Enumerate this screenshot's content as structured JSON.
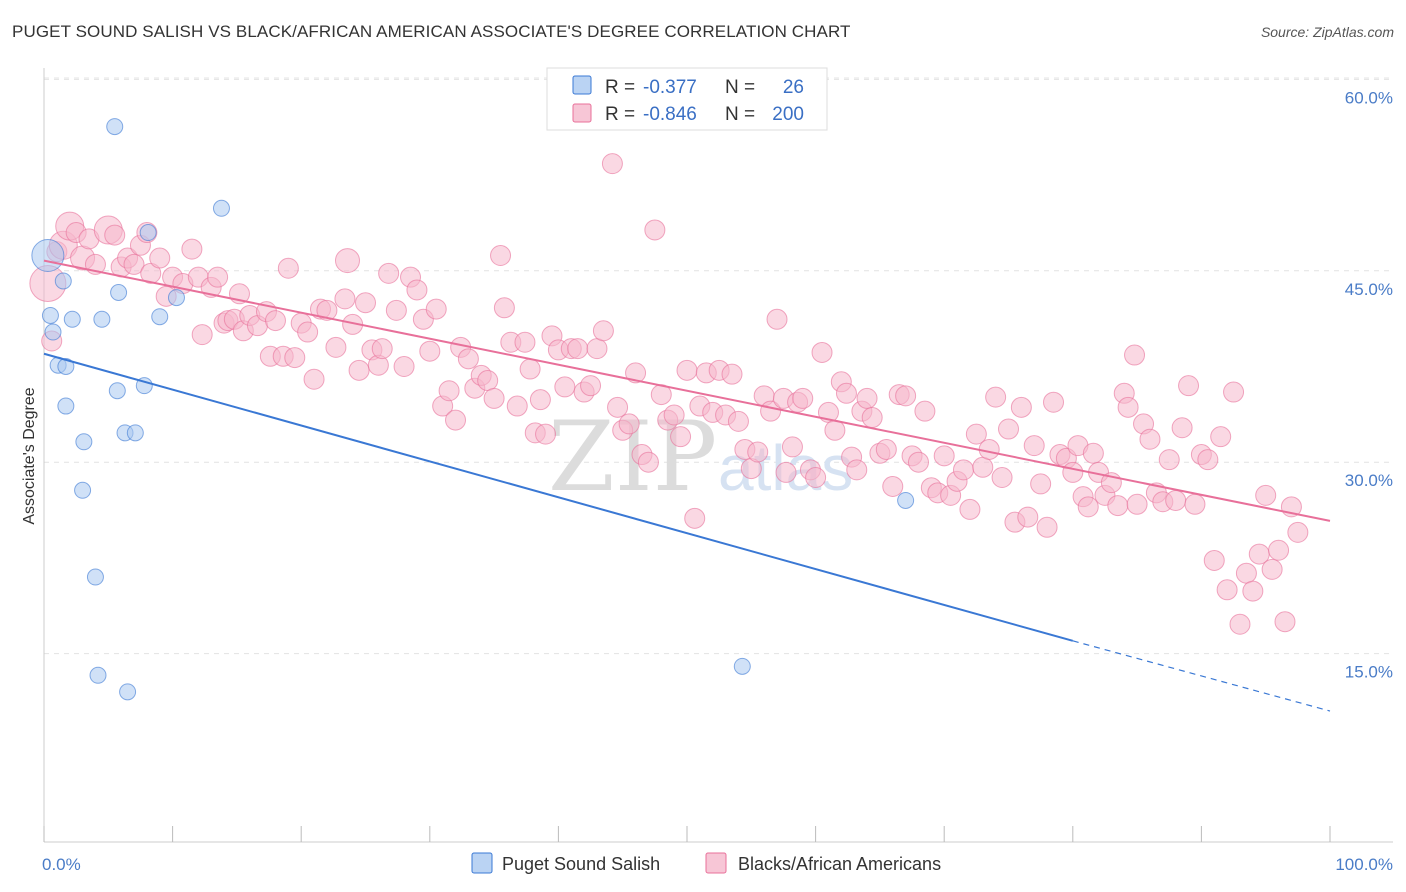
{
  "title": "PUGET SOUND SALISH VS BLACK/AFRICAN AMERICAN ASSOCIATE'S DEGREE CORRELATION CHART",
  "source": "Source: ZipAtlas.com",
  "watermark": {
    "zip": "ZIP",
    "atlas": "atlas"
  },
  "colors": {
    "blue": "#3a78d4",
    "blue_fill": "#a9c8f0",
    "pink": "#e8709a",
    "pink_fill": "#f5b8cc",
    "tick": "#4a7cc7"
  },
  "legend": {
    "rows": [
      {
        "r_label": "R = ",
        "r_value": "-0.377",
        "n_label": "N = ",
        "n_value": "26"
      },
      {
        "r_label": "R = ",
        "r_value": "-0.846",
        "n_label": "N = ",
        "n_value": "200"
      }
    ]
  },
  "chart_data": {
    "type": "scatter",
    "xlabel": "",
    "ylabel": "Associate's Degree",
    "xlim": [
      0,
      100
    ],
    "ylim": [
      0,
      65
    ],
    "x_tick_labels": [
      "0.0%",
      "100.0%"
    ],
    "y_ticks": [
      15,
      30,
      45,
      60
    ],
    "y_tick_labels": [
      "15.0%",
      "30.0%",
      "45.0%",
      "60.0%"
    ],
    "grid": "horizontal dashed",
    "legend_position": "top-center",
    "series": [
      {
        "name": "Puget Sound Salish",
        "color": "blue",
        "trend": {
          "x0": 0,
          "y0": 38.5,
          "x1": 80,
          "y1": 16.0,
          "dashed_to_x": 100,
          "dashed_y": 10.5
        },
        "points": [
          [
            0.3,
            46.2,
            16
          ],
          [
            0.5,
            41.5,
            8
          ],
          [
            0.7,
            40.2,
            8
          ],
          [
            1.1,
            37.6,
            8
          ],
          [
            1.5,
            44.2,
            8
          ],
          [
            1.7,
            37.5,
            8
          ],
          [
            1.7,
            34.4,
            8
          ],
          [
            2.2,
            41.2,
            8
          ],
          [
            3.0,
            27.8,
            8
          ],
          [
            3.1,
            31.6,
            8
          ],
          [
            4.0,
            21.0,
            8
          ],
          [
            4.2,
            13.3,
            8
          ],
          [
            4.5,
            41.2,
            8
          ],
          [
            5.5,
            56.3,
            8
          ],
          [
            5.7,
            35.6,
            8
          ],
          [
            5.8,
            43.3,
            8
          ],
          [
            6.3,
            32.3,
            8
          ],
          [
            6.5,
            12.0,
            8
          ],
          [
            7.1,
            32.3,
            8
          ],
          [
            7.8,
            36.0,
            8
          ],
          [
            8.1,
            48.0,
            8
          ],
          [
            9.0,
            41.4,
            8
          ],
          [
            10.3,
            42.9,
            8
          ],
          [
            13.8,
            49.9,
            8
          ],
          [
            54.3,
            14.0,
            8
          ],
          [
            67.0,
            27.0,
            8
          ]
        ]
      },
      {
        "name": "Blacks/African Americans",
        "color": "pink",
        "trend": {
          "x0": 0,
          "y0": 45.8,
          "x1": 100,
          "y1": 25.4
        },
        "points": [
          [
            0.3,
            44.0,
            18
          ],
          [
            0.6,
            39.5,
            10
          ],
          [
            1.0,
            46.5,
            10
          ],
          [
            1.5,
            47.0,
            14
          ],
          [
            2.0,
            48.5,
            14
          ],
          [
            2.5,
            48.0,
            10
          ],
          [
            3.0,
            46.0,
            12
          ],
          [
            3.5,
            47.5,
            10
          ],
          [
            4.0,
            45.5,
            10
          ],
          [
            5.0,
            48.2,
            14
          ],
          [
            5.5,
            47.8,
            10
          ],
          [
            6.0,
            45.3,
            10
          ],
          [
            6.5,
            46.0,
            10
          ],
          [
            7.0,
            45.5,
            10
          ],
          [
            7.5,
            47.0,
            10
          ],
          [
            8.0,
            48.0,
            10
          ],
          [
            8.3,
            44.8,
            10
          ],
          [
            9.0,
            46.0,
            10
          ],
          [
            9.5,
            43.0,
            10
          ],
          [
            10.0,
            44.5,
            10
          ],
          [
            10.8,
            44.0,
            10
          ],
          [
            11.5,
            46.7,
            10
          ],
          [
            12.0,
            44.5,
            10
          ],
          [
            12.3,
            40.0,
            10
          ],
          [
            13.0,
            43.7,
            10
          ],
          [
            13.5,
            44.5,
            10
          ],
          [
            14.0,
            40.9,
            10
          ],
          [
            14.3,
            41.1,
            10
          ],
          [
            14.8,
            41.2,
            10
          ],
          [
            15.2,
            43.2,
            10
          ],
          [
            15.5,
            40.3,
            10
          ],
          [
            16.0,
            41.5,
            10
          ],
          [
            16.6,
            40.7,
            10
          ],
          [
            17.3,
            41.8,
            10
          ],
          [
            17.6,
            38.3,
            10
          ],
          [
            18.0,
            41.1,
            10
          ],
          [
            18.6,
            38.3,
            10
          ],
          [
            19.0,
            45.2,
            10
          ],
          [
            19.5,
            38.2,
            10
          ],
          [
            20.0,
            40.9,
            10
          ],
          [
            20.5,
            40.2,
            10
          ],
          [
            21.0,
            36.5,
            10
          ],
          [
            21.5,
            42.0,
            10
          ],
          [
            22.0,
            41.9,
            10
          ],
          [
            22.7,
            39.0,
            10
          ],
          [
            23.4,
            42.8,
            10
          ],
          [
            23.6,
            45.8,
            12
          ],
          [
            24.0,
            40.8,
            10
          ],
          [
            24.5,
            37.2,
            10
          ],
          [
            25.0,
            42.5,
            10
          ],
          [
            25.5,
            38.8,
            10
          ],
          [
            26.0,
            37.6,
            10
          ],
          [
            26.3,
            38.9,
            10
          ],
          [
            26.8,
            44.8,
            10
          ],
          [
            27.4,
            41.9,
            10
          ],
          [
            28.0,
            37.5,
            10
          ],
          [
            28.5,
            44.5,
            10
          ],
          [
            29.0,
            43.5,
            10
          ],
          [
            29.5,
            41.2,
            10
          ],
          [
            30.0,
            38.7,
            10
          ],
          [
            30.5,
            42.0,
            10
          ],
          [
            31.0,
            34.4,
            10
          ],
          [
            31.5,
            35.6,
            10
          ],
          [
            32.0,
            33.3,
            10
          ],
          [
            32.4,
            39.0,
            10
          ],
          [
            33.0,
            38.1,
            10
          ],
          [
            33.5,
            35.8,
            10
          ],
          [
            34.0,
            36.8,
            10
          ],
          [
            34.5,
            36.4,
            10
          ],
          [
            35.0,
            35.0,
            10
          ],
          [
            35.5,
            46.2,
            10
          ],
          [
            35.8,
            42.1,
            10
          ],
          [
            36.3,
            39.4,
            10
          ],
          [
            36.8,
            34.4,
            10
          ],
          [
            37.4,
            39.4,
            10
          ],
          [
            37.8,
            37.3,
            10
          ],
          [
            38.2,
            32.3,
            10
          ],
          [
            38.6,
            34.9,
            10
          ],
          [
            39.0,
            32.2,
            10
          ],
          [
            39.5,
            39.9,
            10
          ],
          [
            40.0,
            38.8,
            10
          ],
          [
            40.5,
            35.9,
            10
          ],
          [
            41.0,
            38.9,
            10
          ],
          [
            41.5,
            38.9,
            10
          ],
          [
            42.0,
            35.5,
            10
          ],
          [
            42.5,
            36.0,
            10
          ],
          [
            43.0,
            38.9,
            10
          ],
          [
            43.5,
            40.3,
            10
          ],
          [
            44.2,
            53.4,
            10
          ],
          [
            44.6,
            34.3,
            10
          ],
          [
            45.0,
            32.5,
            10
          ],
          [
            45.5,
            33.0,
            10
          ],
          [
            46.0,
            37.0,
            10
          ],
          [
            46.5,
            30.6,
            10
          ],
          [
            47.0,
            30.0,
            10
          ],
          [
            47.5,
            48.2,
            10
          ],
          [
            48.0,
            35.3,
            10
          ],
          [
            48.5,
            33.3,
            10
          ],
          [
            49.0,
            33.7,
            10
          ],
          [
            49.5,
            32.0,
            10
          ],
          [
            50.0,
            37.2,
            10
          ],
          [
            50.6,
            25.6,
            10
          ],
          [
            51.0,
            34.4,
            10
          ],
          [
            51.5,
            37.0,
            10
          ],
          [
            52.0,
            33.9,
            10
          ],
          [
            52.5,
            37.2,
            10
          ],
          [
            53.0,
            33.7,
            10
          ],
          [
            53.5,
            36.9,
            10
          ],
          [
            54.0,
            33.2,
            10
          ],
          [
            54.5,
            31.0,
            10
          ],
          [
            55.0,
            29.5,
            10
          ],
          [
            55.5,
            30.8,
            10
          ],
          [
            56.0,
            35.2,
            10
          ],
          [
            56.5,
            34.0,
            10
          ],
          [
            57.0,
            41.2,
            10
          ],
          [
            57.5,
            35.0,
            10
          ],
          [
            57.7,
            29.2,
            10
          ],
          [
            58.2,
            31.2,
            10
          ],
          [
            58.6,
            34.7,
            10
          ],
          [
            59.0,
            35.0,
            10
          ],
          [
            59.6,
            29.4,
            10
          ],
          [
            60.0,
            28.8,
            10
          ],
          [
            60.5,
            38.6,
            10
          ],
          [
            61.0,
            33.9,
            10
          ],
          [
            61.5,
            32.5,
            10
          ],
          [
            62.0,
            36.3,
            10
          ],
          [
            62.4,
            35.4,
            10
          ],
          [
            62.8,
            30.4,
            10
          ],
          [
            63.2,
            29.4,
            10
          ],
          [
            63.6,
            34.0,
            10
          ],
          [
            64.0,
            35.0,
            10
          ],
          [
            64.4,
            33.5,
            10
          ],
          [
            65.0,
            30.7,
            10
          ],
          [
            65.5,
            31.0,
            10
          ],
          [
            66.0,
            28.1,
            10
          ],
          [
            66.5,
            35.3,
            10
          ],
          [
            67.0,
            35.2,
            10
          ],
          [
            67.5,
            30.5,
            10
          ],
          [
            68.0,
            30.0,
            10
          ],
          [
            68.5,
            34.0,
            10
          ],
          [
            69.0,
            28.0,
            10
          ],
          [
            69.5,
            27.6,
            10
          ],
          [
            70.0,
            30.5,
            10
          ],
          [
            70.5,
            27.4,
            10
          ],
          [
            71.0,
            28.5,
            10
          ],
          [
            71.5,
            29.4,
            10
          ],
          [
            72.0,
            26.3,
            10
          ],
          [
            72.5,
            32.2,
            10
          ],
          [
            73.0,
            29.6,
            10
          ],
          [
            73.5,
            31.0,
            10
          ],
          [
            74.0,
            35.1,
            10
          ],
          [
            74.5,
            28.8,
            10
          ],
          [
            75.0,
            32.6,
            10
          ],
          [
            75.5,
            25.3,
            10
          ],
          [
            76.0,
            34.3,
            10
          ],
          [
            76.5,
            25.7,
            10
          ],
          [
            77.0,
            31.3,
            10
          ],
          [
            77.5,
            28.3,
            10
          ],
          [
            78.0,
            24.9,
            10
          ],
          [
            78.5,
            34.7,
            10
          ],
          [
            79.0,
            30.6,
            10
          ],
          [
            79.5,
            30.3,
            10
          ],
          [
            80.0,
            29.2,
            10
          ],
          [
            80.4,
            31.3,
            10
          ],
          [
            80.8,
            27.3,
            10
          ],
          [
            81.2,
            26.5,
            10
          ],
          [
            81.6,
            30.7,
            10
          ],
          [
            82.0,
            29.2,
            10
          ],
          [
            82.5,
            27.4,
            10
          ],
          [
            83.0,
            28.4,
            10
          ],
          [
            83.5,
            26.6,
            10
          ],
          [
            84.0,
            35.4,
            10
          ],
          [
            84.3,
            34.3,
            10
          ],
          [
            84.8,
            38.4,
            10
          ],
          [
            85.0,
            26.7,
            10
          ],
          [
            85.5,
            33.0,
            10
          ],
          [
            86.0,
            31.8,
            10
          ],
          [
            86.5,
            27.6,
            10
          ],
          [
            87.0,
            26.9,
            10
          ],
          [
            87.5,
            30.2,
            10
          ],
          [
            88.0,
            27.0,
            10
          ],
          [
            88.5,
            32.7,
            10
          ],
          [
            89.0,
            36.0,
            10
          ],
          [
            89.5,
            26.7,
            10
          ],
          [
            90.0,
            30.6,
            10
          ],
          [
            90.5,
            30.2,
            10
          ],
          [
            91.0,
            22.3,
            10
          ],
          [
            91.5,
            32.0,
            10
          ],
          [
            92.0,
            20.0,
            10
          ],
          [
            92.5,
            35.5,
            10
          ],
          [
            93.0,
            17.3,
            10
          ],
          [
            93.5,
            21.3,
            10
          ],
          [
            94.0,
            19.9,
            10
          ],
          [
            94.5,
            22.8,
            10
          ],
          [
            95.0,
            27.4,
            10
          ],
          [
            95.5,
            21.6,
            10
          ],
          [
            96.0,
            23.1,
            10
          ],
          [
            96.5,
            17.5,
            10
          ],
          [
            97.0,
            26.5,
            10
          ],
          [
            97.5,
            24.5,
            10
          ]
        ]
      }
    ]
  }
}
